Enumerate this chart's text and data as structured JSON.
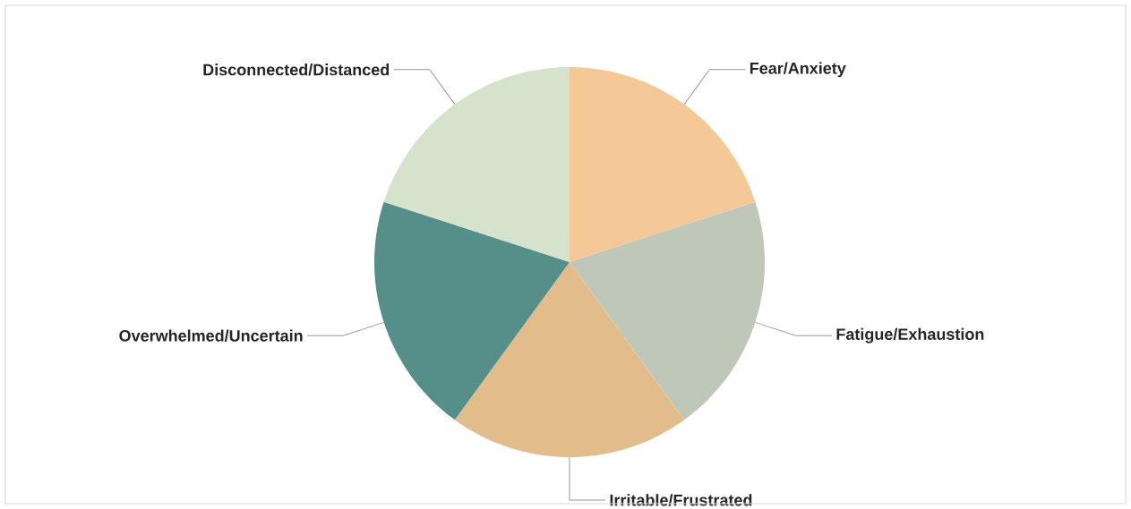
{
  "chart_data": {
    "type": "pie",
    "categories": [
      "Fear/Anxiety",
      "Fatigue/Exhaustion",
      "Irritable/Frustrated",
      "Overwhelmed/Uncertain",
      "Disconnected/Distanced"
    ],
    "values": [
      20,
      20,
      20,
      20,
      20
    ],
    "colors": [
      "#f5c897",
      "#bfc8b8",
      "#e2bd8b",
      "#568e89",
      "#d5e2cc"
    ]
  }
}
